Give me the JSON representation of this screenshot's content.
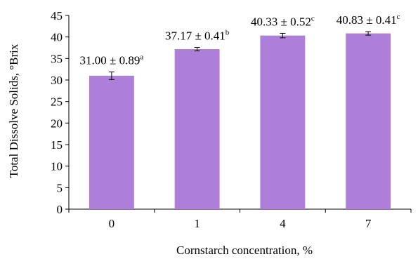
{
  "chart_data": {
    "type": "bar",
    "title": "",
    "xlabel": "Cornstarch concentration, %",
    "ylabel": "Total Dissolve Solids, °Brix",
    "categories": [
      "0",
      "1",
      "4",
      "7"
    ],
    "values": [
      31.0,
      37.17,
      40.33,
      40.83
    ],
    "errors": [
      0.89,
      0.41,
      0.52,
      0.41
    ],
    "data_labels": [
      {
        "text": "31.00 ± 0.89",
        "sup": "a"
      },
      {
        "text": "37.17 ± 0.41",
        "sup": "b"
      },
      {
        "text": "40.33 ± 0.52",
        "sup": "c"
      },
      {
        "text": "40.83 ± 0.41",
        "sup": "c"
      }
    ],
    "ylim": [
      0,
      45
    ],
    "yticks": [
      0,
      5,
      10,
      15,
      20,
      25,
      30,
      35,
      40,
      45
    ],
    "grid": false,
    "legend": "none",
    "bar_color": "#ae7fd9",
    "axis_color": "#000000"
  }
}
